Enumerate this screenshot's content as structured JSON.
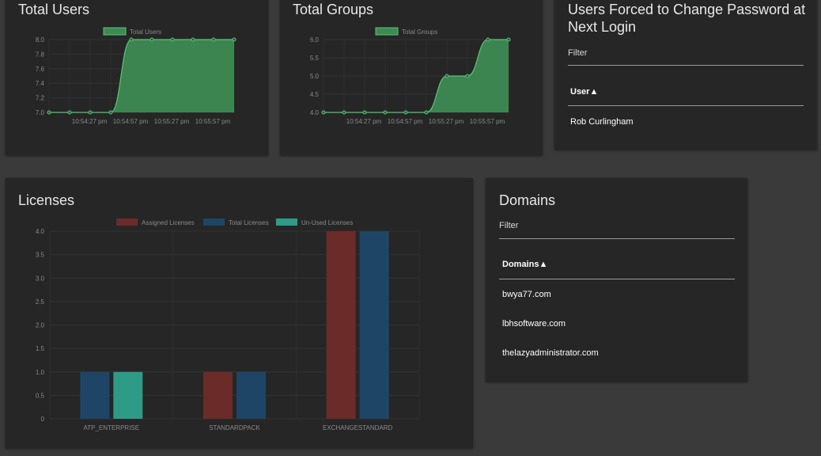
{
  "cards": {
    "total_users": {
      "title": "Total Users"
    },
    "total_groups": {
      "title": "Total Groups"
    },
    "forced_password": {
      "title_line1": "Users Forced to Change Password at",
      "title_line2": "Next Login",
      "filter_label": "Filter",
      "column_header": "User▲",
      "rows": [
        "Rob Curlingham"
      ]
    },
    "licenses": {
      "title": "Licenses"
    },
    "domains": {
      "title": "Domains",
      "filter_label": "Filter",
      "column_header": "Domains▲",
      "rows": [
        "bwya77.com",
        "lbhsoftware.com",
        "thelazyadministrator.com"
      ]
    }
  },
  "colors": {
    "background": "#3a3a3a",
    "card": "#262626",
    "green_line": "#5ec27a",
    "green_fill": "#3d8a53",
    "assigned": "#6b2b28",
    "total": "#1e4566",
    "unused": "#2e9b87"
  },
  "chart_data": [
    {
      "type": "line",
      "legend": [
        "Total Users"
      ],
      "x_tick_labels": [
        "10:54:27 pm",
        "10:54:57 pm",
        "10:55:27 pm",
        "10:55:57 pm"
      ],
      "y_tick_labels": [
        "7.0",
        "7.2",
        "7.4",
        "7.6",
        "7.8",
        "8.0"
      ],
      "ylim": [
        7.0,
        8.0
      ],
      "series": [
        {
          "name": "Total Users",
          "values": [
            7,
            7,
            7,
            7,
            8,
            8,
            8,
            8,
            8,
            8
          ]
        }
      ]
    },
    {
      "type": "line",
      "legend": [
        "Total Groups"
      ],
      "x_tick_labels": [
        "10:54:27 pm",
        "10:54:57 pm",
        "10:55:27 pm",
        "10:55:57 pm"
      ],
      "y_tick_labels": [
        "4.0",
        "4.5",
        "5.0",
        "5.5",
        "6.0"
      ],
      "ylim": [
        4.0,
        6.0
      ],
      "series": [
        {
          "name": "Total Groups",
          "values": [
            4,
            4,
            4,
            4,
            4,
            4,
            5,
            5,
            6,
            6
          ]
        }
      ]
    },
    {
      "type": "bar",
      "categories": [
        "ATP_ENTERPRISE",
        "STANDARDPACK",
        "EXCHANGESTANDARD"
      ],
      "y_tick_labels": [
        "0",
        "0.5",
        "1.0",
        "1.5",
        "2.0",
        "2.5",
        "3.0",
        "3.5",
        "4.0"
      ],
      "ylim": [
        0,
        4
      ],
      "series": [
        {
          "name": "Assigned Licenses",
          "values": [
            0,
            1,
            4
          ]
        },
        {
          "name": "Total Licenses",
          "values": [
            1,
            1,
            4
          ]
        },
        {
          "name": "Un-Used Licenses",
          "values": [
            1,
            0,
            0
          ]
        }
      ]
    }
  ]
}
